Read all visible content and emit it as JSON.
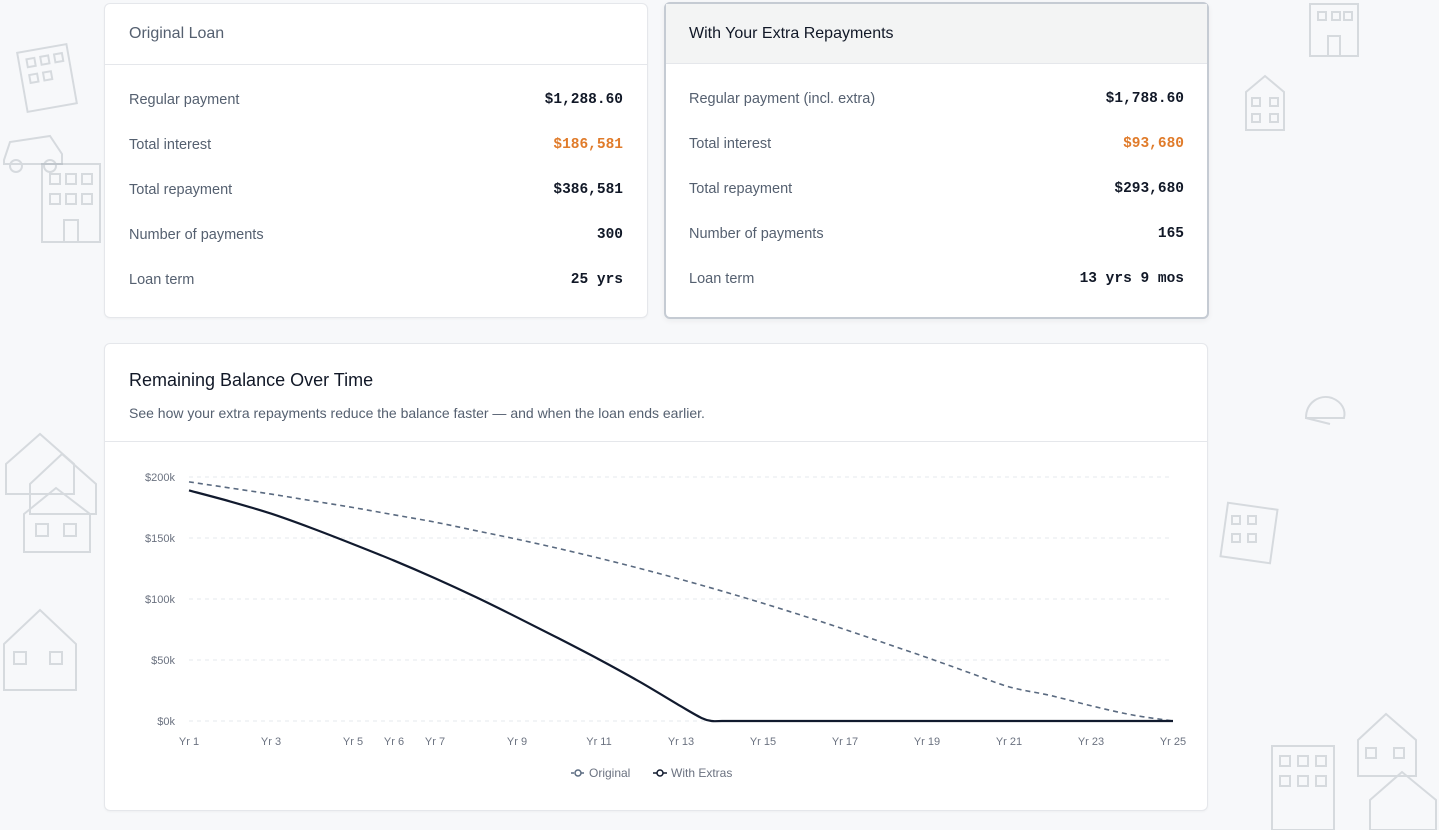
{
  "original_card": {
    "title": "Original Loan",
    "rows": [
      {
        "label": "Regular payment",
        "value": "$1,288.60"
      },
      {
        "label": "Total interest",
        "value": "$186,581"
      },
      {
        "label": "Total repayment",
        "value": "$386,581"
      },
      {
        "label": "Number of payments",
        "value": "300"
      },
      {
        "label": "Loan term",
        "value": "25 yrs"
      }
    ]
  },
  "extra_card": {
    "title": "With Your Extra Repayments",
    "rows": [
      {
        "label": "Regular payment (incl. extra)",
        "value": "$1,788.60"
      },
      {
        "label": "Total interest",
        "value": "$93,680"
      },
      {
        "label": "Total repayment",
        "value": "$293,680"
      },
      {
        "label": "Number of payments",
        "value": "165"
      },
      {
        "label": "Loan term",
        "value": "13 yrs 9 mos"
      }
    ]
  },
  "colors": {
    "accent": "#e07b2a",
    "original_line": "#5a6a80",
    "extras_line": "#111a2e"
  },
  "chart_card": {
    "title": "Remaining Balance Over Time",
    "subtitle": "See how your extra repayments reduce the balance faster — and when the loan ends earlier."
  },
  "chart_data": {
    "type": "line",
    "title": "",
    "xlabel": "",
    "ylabel": "",
    "ylim": [
      0,
      200000
    ],
    "y_ticks": [
      0,
      50000,
      100000,
      150000,
      200000
    ],
    "y_tick_labels": [
      "$0k",
      "$50k",
      "$100k",
      "$150k",
      "$200k"
    ],
    "x_ticks": [
      1,
      3,
      5,
      6,
      7,
      9,
      11,
      13,
      15,
      17,
      19,
      21,
      23,
      25
    ],
    "x_tick_labels": [
      "Yr 1",
      "Yr 3",
      "Yr 5",
      "Yr 6",
      "Yr 7",
      "Yr 9",
      "Yr 11",
      "Yr 13",
      "Yr 15",
      "Yr 17",
      "Yr 19",
      "Yr 21",
      "Yr 23",
      "Yr 25"
    ],
    "grid": true,
    "legend_position": "bottom",
    "series": [
      {
        "name": "Original",
        "style": "dashed",
        "x": [
          1,
          2,
          3,
          4,
          5,
          6,
          7,
          8,
          9,
          10,
          11,
          12,
          13,
          14,
          15,
          16,
          17,
          18,
          19,
          20,
          21,
          22,
          23,
          24,
          25
        ],
        "y": [
          196000,
          191000,
          186000,
          180500,
          175000,
          169000,
          163000,
          156000,
          149000,
          141500,
          133500,
          125000,
          116000,
          106500,
          96500,
          86000,
          75000,
          63500,
          52000,
          40000,
          28000,
          21000,
          12500,
          5000,
          0
        ]
      },
      {
        "name": "With Extras",
        "style": "solid",
        "x": [
          1,
          2,
          3,
          4,
          5,
          6,
          7,
          8,
          9,
          10,
          11,
          12,
          13,
          13.5,
          13.75,
          14,
          15,
          16,
          17,
          18,
          19,
          20,
          21,
          22,
          23,
          24,
          25
        ],
        "y": [
          189000,
          180000,
          170000,
          158000,
          145000,
          131500,
          117000,
          101500,
          85000,
          68000,
          50500,
          32000,
          12000,
          2500,
          0,
          0,
          0,
          0,
          0,
          0,
          0,
          0,
          0,
          0,
          0,
          0,
          0
        ]
      }
    ]
  }
}
